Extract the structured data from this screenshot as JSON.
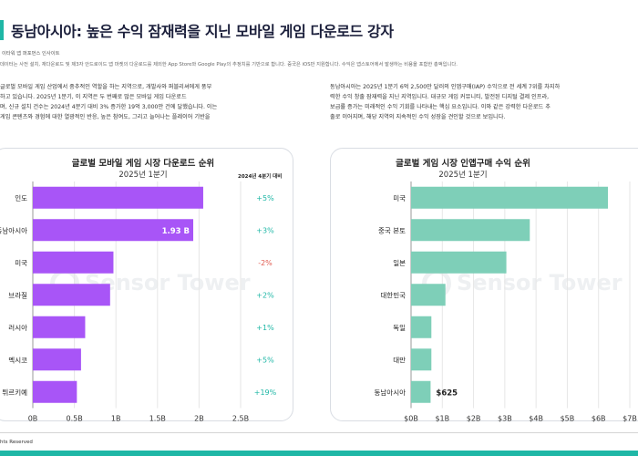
{
  "header": {
    "title": "동남아시아: 높은 수익 잠재력을 지닌 모바일 게임 다운로드 강자",
    "source": "이타워 앱 퍼포먼스 인사이트",
    "source_note": "데이터는 사전 설치, 재다운로드 및 제3자 안드로이드 앱 마켓의 다운로드를 제외한 App Store와 Google Play의 추정치를 기반으로 합니다. 중국은 iOS만 지원합니다. 수익은 앱스토어에서 발생하는 비용을 포함한 총액입니다."
  },
  "paragraphs": {
    "left": [
      "글로벌 모바일 게임 산업에서 중추적인 역할을 하는 지역으로, 개발사와 퍼블리셔에게 풍부",
      "하고 있습니다. 2025년 1분기, 이 지역은 두 번째로 많은 모바일 게임 다운로드",
      "며, 신규 설치 건수는 2024년 4분기 대비 3% 증가한 19억 3,000만 건에 달했습니다. 이는",
      "게임 콘텐츠와 경험에 대한 열광적인 반응, 높은 참여도, 그리고 늘어나는 플레이어 기반을"
    ],
    "right": [
      "동남아시아는 2025년 1분기 6억 2,500만 달러의 인앱구매(IAP) 수익으로 전 세계 7위를 차지하",
      "력한 수익 창출 잠재력을 지닌 지역입니다. 대규모 게임 커뮤니티, 발전된 디지털 결제 인프라,",
      "보급률 증가는 미래적인 수익 기회를 나타내는 핵심 요소입니다. 이와 같은 강력한 다운로드 추",
      "출로 이어지며, 해당 지역의 지속적인 수익 성장을 견인할 것으로 보입니다."
    ]
  },
  "watermark": "Sensor Tower",
  "chart_data": [
    {
      "type": "bar",
      "orientation": "horizontal",
      "title": "글로벌 모바일 게임 시장 다운로드 순위",
      "subtitle": "2025년 1분기",
      "change_header": "2024년 4분기 대비",
      "categories": [
        "인도",
        "동남아시아",
        "미국",
        "브라질",
        "러시아",
        "멕시코",
        "튀르키예"
      ],
      "values": [
        2.05,
        1.93,
        0.97,
        0.93,
        0.63,
        0.58,
        0.53
      ],
      "data_labels": [
        "",
        "1.93 B",
        "",
        "",
        "",
        "",
        ""
      ],
      "changes": [
        "+5%",
        "+3%",
        "-2%",
        "+2%",
        "+1%",
        "+5%",
        "+19%"
      ],
      "xlim": [
        0,
        2.5
      ],
      "ticks": [
        0,
        0.5,
        1,
        1.5,
        2,
        2.5
      ],
      "tick_labels": [
        "0B",
        "0.5B",
        "1B",
        "1.5B",
        "2B",
        "2.5B"
      ],
      "color": "#a855f7",
      "positive_color": "#1fb7a6",
      "negative_color": "#e05a4f"
    },
    {
      "type": "bar",
      "orientation": "horizontal",
      "title": "글로벌 게임 시장 인앱구매 수익 순위",
      "subtitle": "2025년 1분기",
      "categories": [
        "미국",
        "중국 본토",
        "일본",
        "대한민국",
        "독일",
        "대만",
        "동남아시아"
      ],
      "values": [
        6.3,
        3.8,
        3.05,
        1.1,
        0.65,
        0.65,
        0.625
      ],
      "data_labels": [
        "",
        "",
        "",
        "",
        "",
        "",
        "$625"
      ],
      "xlim": [
        0,
        7
      ],
      "ticks": [
        0,
        1,
        2,
        3,
        4,
        5,
        6,
        7
      ],
      "tick_labels": [
        "$0B",
        "$1B",
        "$2B",
        "$3B",
        "$4B",
        "$5B",
        "$6B",
        "$7B"
      ],
      "color": "#7ecfb8"
    }
  ],
  "footer": {
    "text": "hts Reserved"
  }
}
